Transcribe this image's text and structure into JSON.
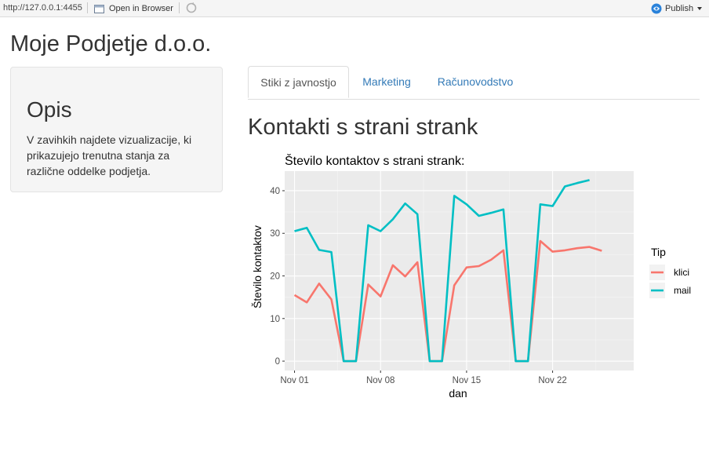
{
  "browser": {
    "url": "http://127.0.0.1:4455",
    "open_label": "Open in Browser",
    "publish_label": "Publish"
  },
  "app": {
    "title": "Moje Podjetje d.o.o."
  },
  "sidebar": {
    "heading": "Opis",
    "text": "V zavihkih najdete vizualizacije, ki prikazujejo trenutna stanja za različne oddelke podjetja."
  },
  "tabs": [
    {
      "label": "Stiki z javnostjo",
      "active": true
    },
    {
      "label": "Marketing",
      "active": false
    },
    {
      "label": "Računovodstvo",
      "active": false
    }
  ],
  "main": {
    "heading": "Kontakti s strani strank"
  },
  "colors": {
    "klici": "#f8766d",
    "mail": "#00bfc4",
    "link": "#337ab7"
  },
  "chart_data": {
    "type": "line",
    "title": "Število kontaktov s strani strank:",
    "xlabel": "dan",
    "ylabel": "Število kontaktov",
    "x_ticks": [
      "Nov 01",
      "Nov 08",
      "Nov 15",
      "Nov 22"
    ],
    "x_tick_days": [
      1,
      8,
      15,
      22
    ],
    "y_ticks": [
      0,
      10,
      20,
      30,
      40
    ],
    "xlim": [
      0.2,
      28.6
    ],
    "ylim": [
      -2.2,
      44.6
    ],
    "legend_title": "Tip",
    "legend_position": "right",
    "grid": true,
    "x": [
      1,
      2,
      3,
      4,
      5,
      6,
      7,
      8,
      9,
      10,
      11,
      12,
      13,
      14,
      15,
      16,
      17,
      18,
      19,
      20,
      21,
      22,
      23,
      24,
      25,
      26,
      27
    ],
    "series": [
      {
        "name": "klici",
        "values": [
          15.5,
          13.8,
          18.2,
          14.5,
          0,
          0,
          18.0,
          15.2,
          22.5,
          19.9,
          23.2,
          0,
          0,
          17.8,
          22.0,
          22.3,
          23.8,
          26.0,
          0,
          0,
          28.2,
          25.7,
          26.0,
          26.5,
          26.8,
          25.9,
          null
        ]
      },
      {
        "name": "mail",
        "values": [
          30.5,
          31.3,
          26.1,
          25.6,
          0,
          0,
          31.9,
          30.5,
          33.3,
          37.0,
          34.5,
          0,
          0,
          38.8,
          36.8,
          34.1,
          34.8,
          35.6,
          0,
          0,
          36.8,
          36.4,
          41.0,
          41.8,
          42.5,
          null,
          null
        ]
      }
    ]
  }
}
